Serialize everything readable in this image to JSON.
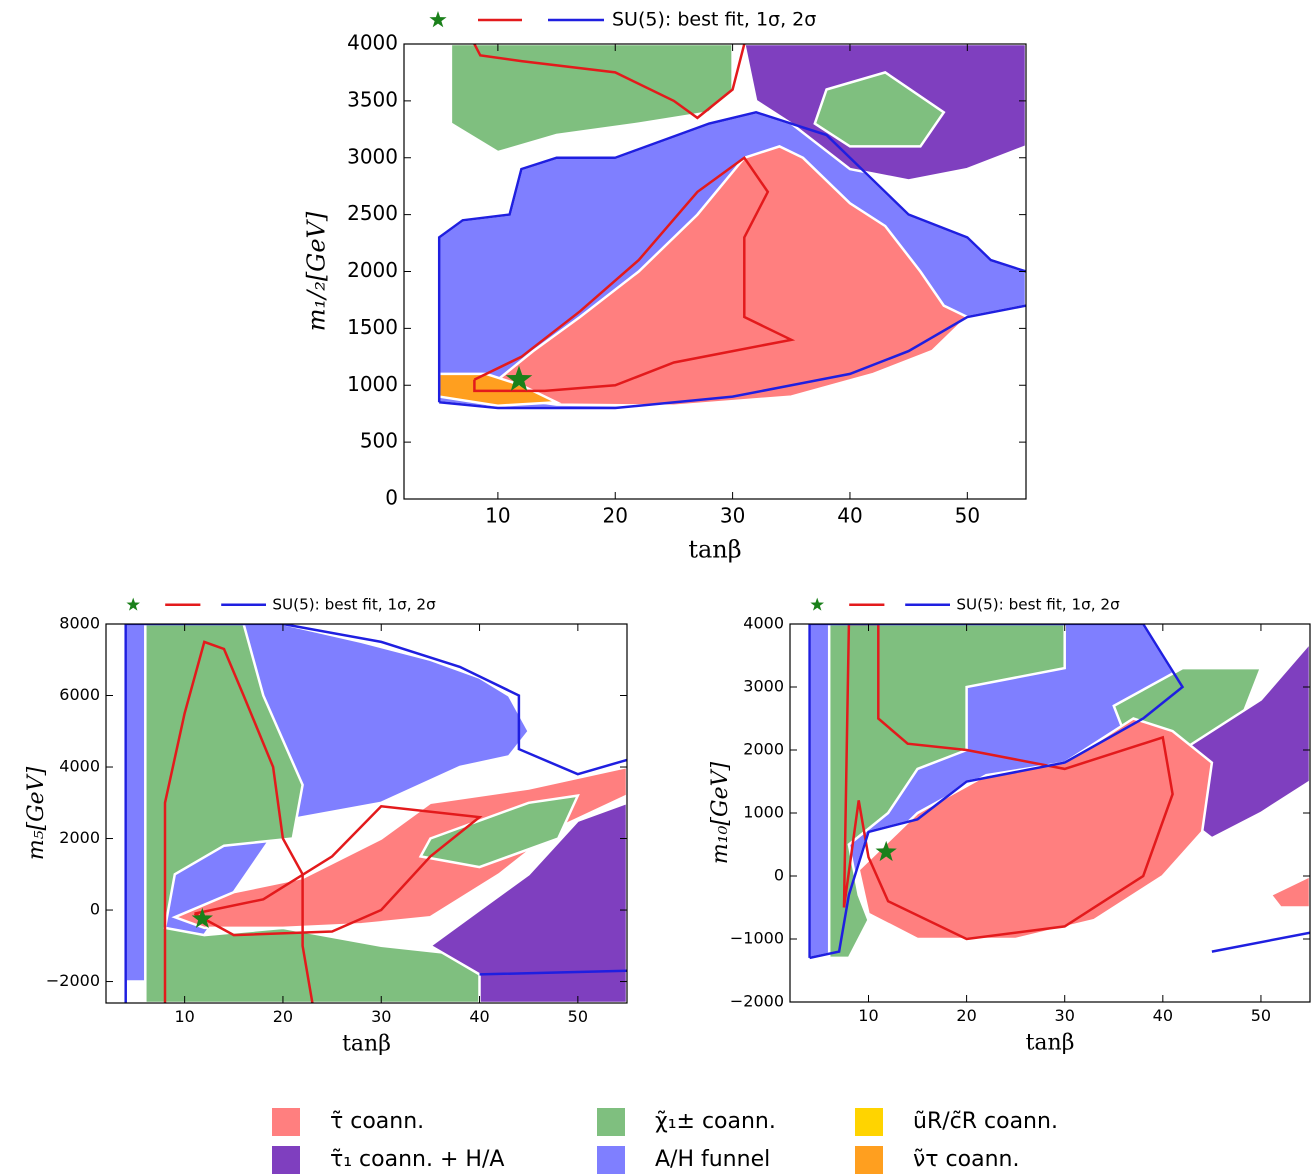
{
  "chart_data": [
    {
      "type": "region",
      "xlabel": "tanβ",
      "ylabel": "m₁/₂[GeV]",
      "legend_label": "SU(5): best fit, 1σ, 2σ",
      "xlim": [
        2,
        55
      ],
      "ylim": [
        0,
        4000
      ],
      "xticks": [
        10,
        20,
        30,
        40,
        50
      ],
      "yticks": [
        0,
        500,
        1000,
        1500,
        2000,
        2500,
        3000,
        3500,
        4000
      ],
      "regions": [
        {
          "color": "#7f7fff",
          "x": [
            5,
            5,
            7,
            11,
            12,
            15,
            20,
            28,
            32,
            38,
            45,
            50,
            52,
            55,
            55,
            50,
            45,
            40,
            30,
            20,
            10
          ],
          "y": [
            850,
            2300,
            2450,
            2500,
            2900,
            3000,
            3000,
            3300,
            3400,
            3200,
            2500,
            2300,
            2100,
            2000,
            1700,
            1600,
            1300,
            1100,
            900,
            800,
            800
          ]
        },
        {
          "color": "#7fbf7f",
          "x": [
            6,
            30,
            30,
            28,
            22,
            15,
            10,
            6,
            6
          ],
          "y": [
            4000,
            4000,
            3600,
            3400,
            3300,
            3200,
            3050,
            3300,
            3800
          ]
        },
        {
          "color": "#7f3fbf",
          "x": [
            31,
            55,
            55,
            50,
            45,
            40,
            35,
            32
          ],
          "y": [
            4000,
            4000,
            3100,
            2900,
            2800,
            2900,
            3300,
            3500
          ]
        },
        {
          "color": "#7fbf7f",
          "x": [
            38,
            43,
            48,
            46,
            40,
            37
          ],
          "y": [
            3600,
            3750,
            3400,
            3100,
            3100,
            3300
          ]
        },
        {
          "color": "#ff7f7f",
          "x": [
            10,
            13,
            17,
            22,
            27,
            31,
            34,
            36,
            40,
            43,
            46,
            48,
            50,
            47,
            42,
            35,
            25,
            15,
            10
          ],
          "y": [
            1050,
            1300,
            1600,
            2000,
            2500,
            3000,
            3100,
            3000,
            2600,
            2400,
            2000,
            1700,
            1600,
            1300,
            1100,
            900,
            820,
            830,
            900
          ]
        },
        {
          "color": "#ff9f1f",
          "x": [
            5,
            5,
            9,
            12,
            15,
            10
          ],
          "y": [
            900,
            1100,
            1100,
            1000,
            850,
            820
          ]
        }
      ],
      "contours": [
        {
          "color": "#e31a1c",
          "x": [
            8,
            12,
            17,
            22,
            27,
            31,
            33,
            31,
            31,
            35,
            30,
            25,
            20,
            14,
            8,
            8
          ],
          "y": [
            1050,
            1250,
            1650,
            2100,
            2700,
            3000,
            2700,
            2300,
            1600,
            1400,
            1300,
            1200,
            1000,
            950,
            950,
            1050
          ]
        },
        {
          "color": "#e31a1c",
          "x": [
            8,
            8.5,
            12,
            20,
            25,
            27,
            30,
            31
          ],
          "y": [
            4000,
            3900,
            3850,
            3750,
            3500,
            3350,
            3600,
            4000
          ]
        },
        {
          "color": "#1f1fe0",
          "x": [
            5,
            5,
            7,
            11,
            12,
            15,
            20,
            28,
            32,
            38,
            45,
            50,
            52,
            55,
            null,
            55,
            50,
            45,
            40,
            30,
            20,
            10,
            5
          ],
          "y": [
            850,
            2300,
            2450,
            2500,
            2900,
            3000,
            3000,
            3300,
            3400,
            3200,
            2500,
            2300,
            2100,
            2000,
            null,
            1700,
            1600,
            1300,
            1100,
            900,
            800,
            800,
            850
          ]
        }
      ],
      "best_fit": {
        "x": 11.8,
        "y": 1050,
        "color": "#1a801a"
      }
    },
    {
      "type": "region",
      "xlabel": "tanβ",
      "ylabel": "m₅[GeV]",
      "legend_label": "SU(5): best fit, 1σ, 2σ",
      "xlim": [
        2,
        55
      ],
      "ylim": [
        -2600,
        8000
      ],
      "xticks": [
        10,
        20,
        30,
        40,
        50
      ],
      "yticks": [
        {
          "value": -2000,
          "label": "−2000"
        },
        0,
        2000,
        4000,
        6000,
        8000
      ],
      "regions": [
        {
          "color": "#7f7fff",
          "x": [
            4,
            4,
            20,
            28,
            35,
            40,
            43,
            45,
            43,
            38,
            30,
            20,
            12,
            9,
            7
          ],
          "y": [
            -2000,
            8000,
            8000,
            7500,
            7000,
            6500,
            6000,
            5000,
            4300,
            4000,
            3000,
            2500,
            -700,
            -1500,
            -2000
          ]
        },
        {
          "color": "#7fbf7f",
          "x": [
            6,
            6,
            16,
            18,
            22,
            21,
            14,
            9,
            8,
            12,
            20,
            30,
            40,
            45,
            44
          ],
          "y": [
            -2600,
            8000,
            8000,
            6000,
            3500,
            2000,
            1800,
            1000,
            -500,
            -700,
            -500,
            -1000,
            -1300,
            -2000,
            -2600
          ]
        },
        {
          "color": "#7f3fbf",
          "x": [
            40,
            55,
            55,
            50,
            45,
            40,
            35,
            40
          ],
          "y": [
            -2600,
            -2600,
            3000,
            2500,
            1000,
            0,
            -1000,
            -1800
          ]
        },
        {
          "color": "#ff7f7f",
          "x": [
            9,
            15,
            22,
            30,
            35,
            45,
            55,
            55,
            48,
            42,
            35,
            28,
            20,
            12
          ],
          "y": [
            -200,
            500,
            900,
            2000,
            3000,
            3400,
            4000,
            3200,
            2300,
            1000,
            -200,
            -400,
            -500,
            -500
          ]
        },
        {
          "color": "#7fbf7f",
          "x": [
            35,
            45,
            50,
            48,
            40,
            34
          ],
          "y": [
            2000,
            3000,
            3200,
            2000,
            1200,
            1500
          ]
        }
      ],
      "contours": [
        {
          "color": "#e31a1c",
          "x": [
            8,
            8,
            10,
            12,
            14,
            16,
            19,
            20,
            22,
            22,
            23
          ],
          "y": [
            -2600,
            3000,
            5500,
            7500,
            7300,
            6000,
            4000,
            2000,
            1000,
            -1000,
            -2600
          ]
        },
        {
          "color": "#e31a1c",
          "x": [
            11,
            18,
            25,
            30,
            40,
            35,
            30,
            25,
            15,
            11
          ],
          "y": [
            -100,
            300,
            1500,
            2900,
            2600,
            1500,
            0,
            -600,
            -700,
            -100
          ]
        },
        {
          "color": "#1f1fe0",
          "x": [
            4,
            4,
            20,
            30,
            38,
            44,
            44,
            50,
            55,
            null,
            40,
            55
          ],
          "y": [
            -2600,
            8000,
            8000,
            7500,
            6800,
            6000,
            4500,
            3800,
            4200,
            null,
            -1800,
            -1700
          ]
        }
      ],
      "best_fit": {
        "x": 11.8,
        "y": -250,
        "color": "#1a801a"
      }
    },
    {
      "type": "region",
      "xlabel": "tanβ",
      "ylabel": "m₁₀[GeV]",
      "legend_label": "SU(5): best fit, 1σ, 2σ",
      "xlim": [
        2,
        55
      ],
      "ylim": [
        -2000,
        4000
      ],
      "xticks": [
        10,
        20,
        30,
        40,
        50
      ],
      "yticks": [
        {
          "value": -2000,
          "label": "−2000"
        },
        {
          "value": -1000,
          "label": "−1000"
        },
        0,
        1000,
        2000,
        3000,
        4000
      ],
      "regions": [
        {
          "color": "#7f7fff",
          "x": [
            4,
            4,
            38,
            40,
            42,
            38,
            30,
            20,
            15,
            10,
            8,
            7
          ],
          "y": [
            -1300,
            4000,
            4000,
            3500,
            3000,
            2500,
            1800,
            1500,
            900,
            700,
            -300,
            -1200
          ]
        },
        {
          "color": "#7fbf7f",
          "x": [
            6,
            6,
            30,
            30,
            20,
            20,
            15,
            12,
            8,
            9,
            10,
            8
          ],
          "y": [
            -1300,
            4000,
            4000,
            3300,
            3000,
            2000,
            1700,
            1000,
            500,
            -300,
            -700,
            -1300
          ]
        },
        {
          "color": "#7fbf7f",
          "x": [
            35,
            42,
            50,
            48,
            42,
            36
          ],
          "y": [
            2700,
            3300,
            3300,
            2500,
            2000,
            2300
          ]
        },
        {
          "color": "#7f3fbf",
          "x": [
            42,
            50,
            55,
            55,
            50,
            45,
            40
          ],
          "y": [
            2000,
            2800,
            3700,
            1500,
            1000,
            600,
            1200
          ]
        },
        {
          "color": "#ff7f7f",
          "x": [
            9,
            15,
            22,
            30,
            37,
            41,
            45,
            44,
            40,
            33,
            25,
            15,
            10
          ],
          "y": [
            100,
            1000,
            1600,
            1800,
            2500,
            2300,
            1800,
            700,
            0,
            -700,
            -1000,
            -1000,
            -600
          ]
        },
        {
          "color": "#ff7f7f",
          "x": [
            51,
            55,
            55,
            52
          ],
          "y": [
            -300,
            0,
            -500,
            -500
          ]
        }
      ],
      "contours": [
        {
          "color": "#e31a1c",
          "x": [
            7.5,
            8,
            11,
            11,
            14,
            20,
            30,
            40,
            41,
            38,
            30,
            20,
            12,
            10,
            9,
            7.5
          ],
          "y": [
            -500,
            4000,
            4000,
            2500,
            2100,
            2000,
            1700,
            2200,
            1300,
            0,
            -800,
            -1000,
            -400,
            300,
            1200,
            -500
          ]
        },
        {
          "color": "#1f1fe0",
          "x": [
            4,
            4,
            38,
            40,
            42,
            38,
            30,
            20,
            15,
            10,
            8,
            7,
            4,
            null,
            45,
            55
          ],
          "y": [
            -1300,
            4000,
            4000,
            3500,
            3000,
            2500,
            1800,
            1500,
            900,
            700,
            -300,
            -1200,
            -1300,
            null,
            -1200,
            -900
          ]
        }
      ],
      "best_fit": {
        "x": 11.8,
        "y": 380,
        "color": "#1a801a"
      }
    }
  ],
  "legend": [
    {
      "name": "τ̃ coann.",
      "color": "#ff7f7f"
    },
    {
      "name": "τ̃₁ coann. + H/A",
      "color": "#7f3fbf"
    },
    {
      "name": "χ̃₁± coann.",
      "color": "#7fbf7f"
    },
    {
      "name": "A/H funnel",
      "color": "#7f7fff"
    },
    {
      "name": "ũR/c̃R coann.",
      "color": "#ffd400"
    },
    {
      "name": "ν̃τ coann.",
      "color": "#ff9f1f"
    }
  ]
}
